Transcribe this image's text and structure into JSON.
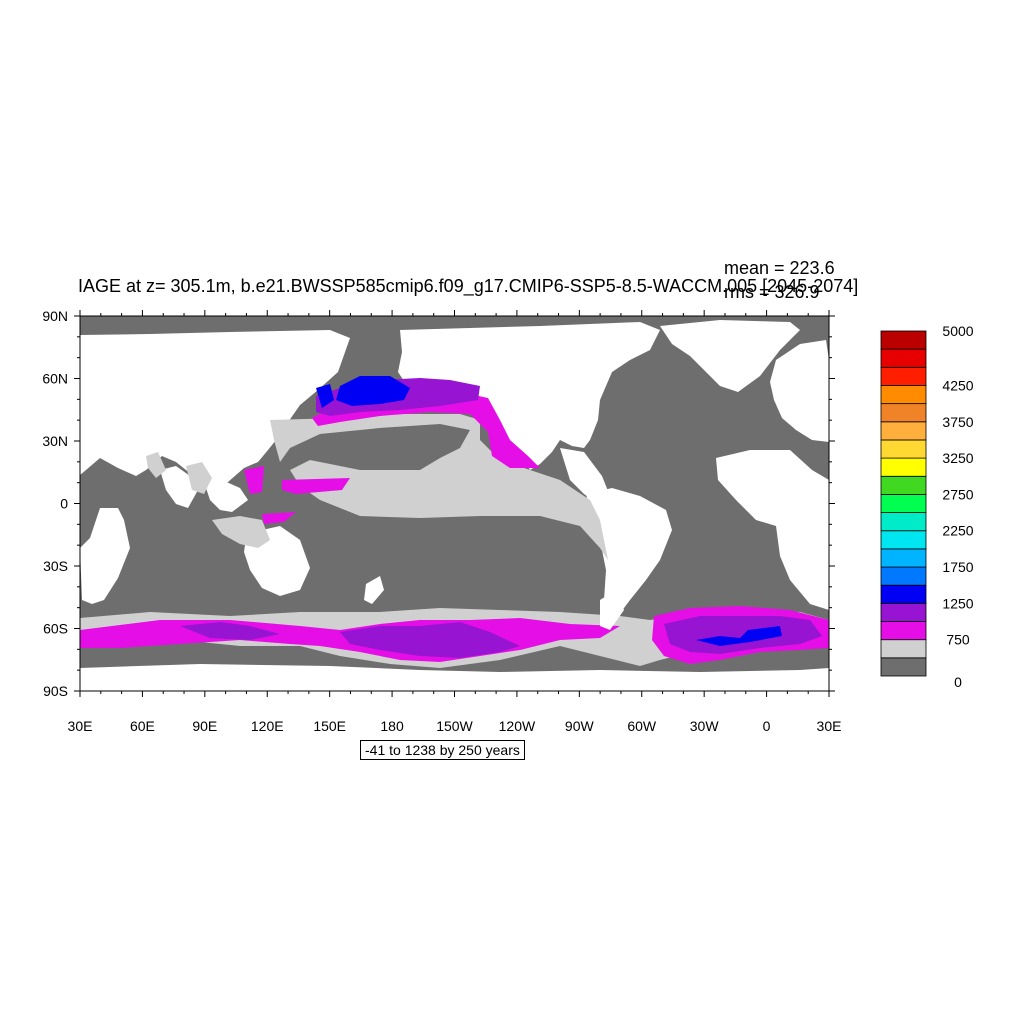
{
  "title": "IAGE at z= 305.1m, b.e21.BWSSP585cmip6.f09_g17.CMIP6-SSP5-8.5-WACCM.005 [2045-2074]",
  "stats": {
    "mean": "mean = 223.6",
    "rms": "rms = 326.9"
  },
  "range_label": "-41 to 1238 by 250 years",
  "axes": {
    "lat_labels": [
      "90N",
      "60N",
      "30N",
      "0",
      "30S",
      "60S",
      "90S"
    ],
    "lon_labels": [
      "30E",
      "60E",
      "90E",
      "120E",
      "150E",
      "180",
      "150W",
      "120W",
      "90W",
      "60W",
      "30W",
      "0",
      "30E"
    ]
  },
  "colorbar": {
    "colors": [
      "#6e6e6e",
      "#d0d0d0",
      "#e60ee6",
      "#9614d2",
      "#0000f5",
      "#0078ff",
      "#00b4ff",
      "#00e6f0",
      "#00ebc8",
      "#00ff50",
      "#40d820",
      "#ffff00",
      "#ffd832",
      "#ffaf3c",
      "#f08228",
      "#ff8c00",
      "#ff1e00",
      "#e60000",
      "#bb0000"
    ],
    "labels": [
      "0",
      "750",
      "1250",
      "1750",
      "2250",
      "2750",
      "3250",
      "3750",
      "4250",
      "5000"
    ]
  },
  "colors": {
    "land": "#ffffff",
    "frame": "#000000"
  }
}
